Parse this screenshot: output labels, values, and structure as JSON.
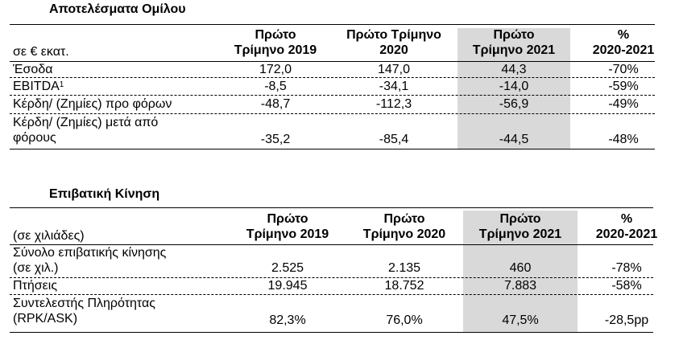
{
  "group_results": {
    "title": "Αποτελέσματα Ομίλου",
    "unit_label": "σε € εκατ.",
    "col1": [
      "Πρώτο",
      "Τρίμηνο 2019"
    ],
    "col2": [
      "Πρώτο Τρίμηνο",
      "2020"
    ],
    "col3": [
      "Πρώτο",
      "Τρίμηνο 2021"
    ],
    "col4": [
      "%",
      "2020-2021"
    ],
    "rows": [
      {
        "label": "Έσοδα",
        "sup": "",
        "v2019": "172,0",
        "v2020": "147,0",
        "v2021": "44,3",
        "pct": "-70%"
      },
      {
        "label": "EBITDA",
        "sup": "1",
        "v2019": "-8,5",
        "v2020": "-34,1",
        "v2021": "-14,0",
        "pct": "-59%"
      },
      {
        "label": "Κέρδη/ (Ζημίες) προ φόρων",
        "sup": "",
        "v2019": "-48,7",
        "v2020": "-112,3",
        "v2021": "-56,9",
        "pct": "-49%"
      },
      {
        "label": [
          "Κέρδη/ (Ζημίες) μετά από",
          "φόρους"
        ],
        "v2019": "-35,2",
        "v2020": "-85,4",
        "v2021": "-44,5",
        "pct": "-48%"
      }
    ]
  },
  "passenger_traffic": {
    "title": "Επιβατική Κίνηση",
    "unit_label": "(σε χιλιάδες)",
    "col1": [
      "Πρώτο",
      "Τρίμηνο 2019"
    ],
    "col2": [
      "Πρώτο",
      "Τρίμηνο 2020"
    ],
    "col3": [
      "Πρώτο",
      "Τρίμηνο 2021"
    ],
    "col4": [
      "%",
      "2020-2021"
    ],
    "rows": [
      {
        "label": [
          "Σύνολο επιβατικής κίνησης",
          "(σε χιλ.)"
        ],
        "v2019": "2.525",
        "v2020": "2.135",
        "v2021": "460",
        "pct": "-78%"
      },
      {
        "label": "Πτήσεις",
        "v2019": "19.945",
        "v2020": "18.752",
        "v2021": "7.883",
        "pct": "-58%"
      },
      {
        "label": [
          "Συντελεστής Πληρότητας",
          "(RPK/ASK)"
        ],
        "v2019": "82,3%",
        "v2020": "76,0%",
        "v2021": "47,5%",
        "pct": "-28,5pp"
      }
    ]
  }
}
